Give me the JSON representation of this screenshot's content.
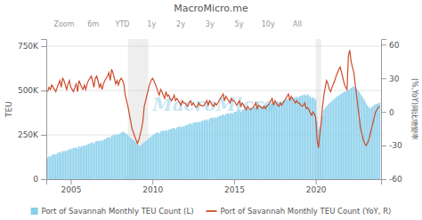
{
  "chart_data": {
    "type": "bar",
    "title": "MacroMicro.me",
    "annotations": [
      "Zoom",
      "6m",
      "YTD",
      "1y",
      "2y",
      "3y",
      "5y",
      "10y",
      "All",
      "MacroMicro"
    ],
    "ylabel": "TEU",
    "y2label": "(%,YoY)同比增變率",
    "xlim": [
      2003.5,
      2024.0
    ],
    "xticks": [
      2005,
      2010,
      2015,
      2020
    ],
    "ylim": [
      0,
      790000
    ],
    "yticks": [
      0,
      {
        "value": 250000,
        "label": "250K"
      },
      {
        "value": 500000,
        "label": "500K"
      },
      {
        "value": 750000,
        "label": "750K"
      }
    ],
    "y2lim": [
      -60,
      65
    ],
    "y2ticks": [
      -60,
      -30,
      0,
      30,
      60
    ],
    "grid": true,
    "legend": "bottom",
    "shaded_regions": [
      [
        2008.5,
        2009.75
      ],
      [
        2020.0,
        2020.33
      ]
    ],
    "x": [
      2003.583,
      2003.667,
      2003.75,
      2003.833,
      2003.917,
      2004.0,
      2004.083,
      2004.167,
      2004.25,
      2004.333,
      2004.417,
      2004.5,
      2004.583,
      2004.667,
      2004.75,
      2004.833,
      2004.917,
      2005.0,
      2005.083,
      2005.167,
      2005.25,
      2005.333,
      2005.417,
      2005.5,
      2005.583,
      2005.667,
      2005.75,
      2005.833,
      2005.917,
      2006.0,
      2006.083,
      2006.167,
      2006.25,
      2006.333,
      2006.417,
      2006.5,
      2006.583,
      2006.667,
      2006.75,
      2006.833,
      2006.917,
      2007.0,
      2007.083,
      2007.167,
      2007.25,
      2007.333,
      2007.417,
      2007.5,
      2007.583,
      2007.667,
      2007.75,
      2007.833,
      2007.917,
      2008.0,
      2008.083,
      2008.167,
      2008.25,
      2008.333,
      2008.417,
      2008.5,
      2008.583,
      2008.667,
      2008.75,
      2008.833,
      2008.917,
      2009.0,
      2009.083,
      2009.167,
      2009.25,
      2009.333,
      2009.417,
      2009.5,
      2009.583,
      2009.667,
      2009.75,
      2009.833,
      2009.917,
      2010.0,
      2010.083,
      2010.167,
      2010.25,
      2010.333,
      2010.417,
      2010.5,
      2010.583,
      2010.667,
      2010.75,
      2010.833,
      2010.917,
      2011.0,
      2011.083,
      2011.167,
      2011.25,
      2011.333,
      2011.417,
      2011.5,
      2011.583,
      2011.667,
      2011.75,
      2011.833,
      2011.917,
      2012.0,
      2012.083,
      2012.167,
      2012.25,
      2012.333,
      2012.417,
      2012.5,
      2012.583,
      2012.667,
      2012.75,
      2012.833,
      2012.917,
      2013.0,
      2013.083,
      2013.167,
      2013.25,
      2013.333,
      2013.417,
      2013.5,
      2013.583,
      2013.667,
      2013.75,
      2013.833,
      2013.917,
      2014.0,
      2014.083,
      2014.167,
      2014.25,
      2014.333,
      2014.417,
      2014.5,
      2014.583,
      2014.667,
      2014.75,
      2014.833,
      2014.917,
      2015.0,
      2015.083,
      2015.167,
      2015.25,
      2015.333,
      2015.417,
      2015.5,
      2015.583,
      2015.667,
      2015.75,
      2015.833,
      2015.917,
      2016.0,
      2016.083,
      2016.167,
      2016.25,
      2016.333,
      2016.417,
      2016.5,
      2016.583,
      2016.667,
      2016.75,
      2016.833,
      2016.917,
      2017.0,
      2017.083,
      2017.167,
      2017.25,
      2017.333,
      2017.417,
      2017.5,
      2017.583,
      2017.667,
      2017.75,
      2017.833,
      2017.917,
      2018.0,
      2018.083,
      2018.167,
      2018.25,
      2018.333,
      2018.417,
      2018.5,
      2018.583,
      2018.667,
      2018.75,
      2018.833,
      2018.917,
      2019.0,
      2019.083,
      2019.167,
      2019.25,
      2019.333,
      2019.417,
      2019.5,
      2019.583,
      2019.667,
      2019.75,
      2019.833,
      2019.917,
      2020.0,
      2020.083,
      2020.167,
      2020.25,
      2020.333,
      2020.417,
      2020.5,
      2020.583,
      2020.667,
      2020.75,
      2020.833,
      2020.917,
      2021.0,
      2021.083,
      2021.167,
      2021.25,
      2021.333,
      2021.417,
      2021.5,
      2021.583,
      2021.667,
      2021.75,
      2021.833,
      2021.917,
      2022.0,
      2022.083,
      2022.167,
      2022.25,
      2022.333,
      2022.417,
      2022.5,
      2022.583,
      2022.667,
      2022.75,
      2022.833,
      2022.917,
      2023.0,
      2023.083,
      2023.167,
      2023.25,
      2023.333,
      2023.417,
      2023.5,
      2023.583,
      2023.667,
      2023.75,
      2023.833,
      2023.917
    ],
    "series": [
      {
        "name": "Port of Savannah Monthly TEU Count (L)",
        "type": "bar",
        "color": "#87CEEB",
        "values": [
          120000,
          130000,
          125000,
          135000,
          140000,
          142000,
          138000,
          145000,
          150000,
          155000,
          148000,
          160000,
          155000,
          162000,
          158000,
          165000,
          170000,
          168000,
          172000,
          175000,
          178000,
          180000,
          172000,
          185000,
          182000,
          188000,
          185000,
          192000,
          188000,
          195000,
          198000,
          202000,
          205000,
          208000,
          200000,
          212000,
          215000,
          218000,
          212000,
          220000,
          215000,
          222000,
          225000,
          230000,
          235000,
          238000,
          232000,
          245000,
          248000,
          252000,
          248000,
          255000,
          250000,
          258000,
          262000,
          265000,
          268000,
          260000,
          255000,
          248000,
          240000,
          232000,
          228000,
          222000,
          215000,
          205000,
          198000,
          192000,
          188000,
          195000,
          202000,
          210000,
          215000,
          220000,
          228000,
          235000,
          240000,
          248000,
          252000,
          258000,
          262000,
          265000,
          258000,
          268000,
          272000,
          275000,
          270000,
          278000,
          272000,
          280000,
          282000,
          285000,
          288000,
          290000,
          282000,
          292000,
          295000,
          298000,
          292000,
          300000,
          295000,
          302000,
          305000,
          308000,
          312000,
          315000,
          308000,
          318000,
          320000,
          322000,
          318000,
          325000,
          320000,
          328000,
          330000,
          332000,
          335000,
          338000,
          330000,
          342000,
          345000,
          348000,
          342000,
          350000,
          345000,
          352000,
          355000,
          358000,
          362000,
          365000,
          358000,
          368000,
          370000,
          372000,
          368000,
          375000,
          370000,
          378000,
          380000,
          382000,
          385000,
          388000,
          380000,
          390000,
          392000,
          395000,
          388000,
          396000,
          390000,
          398000,
          400000,
          402000,
          405000,
          408000,
          400000,
          410000,
          412000,
          415000,
          408000,
          418000,
          412000,
          420000,
          422000,
          425000,
          428000,
          430000,
          422000,
          432000,
          435000,
          438000,
          432000,
          440000,
          435000,
          442000,
          445000,
          448000,
          452000,
          455000,
          448000,
          458000,
          460000,
          462000,
          458000,
          465000,
          460000,
          468000,
          470000,
          472000,
          475000,
          478000,
          470000,
          480000,
          472000,
          465000,
          458000,
          462000,
          455000,
          448000,
          328000,
          282000,
          295000,
          322000,
          358000,
          388000,
          402000,
          412000,
          420000,
          428000,
          435000,
          442000,
          448000,
          455000,
          462000,
          468000,
          472000,
          478000,
          482000,
          488000,
          492000,
          495000,
          498000,
          502000,
          508000,
          515000,
          520000,
          525000,
          518000,
          510000,
          502000,
          492000,
          480000,
          468000,
          455000,
          442000,
          428000,
          415000,
          405000,
          398000,
          405000,
          412000,
          418000,
          422000,
          425000,
          428000,
          432000
        ]
      },
      {
        "name": "Port of Savannah Monthly TEU Count (YoY, R)",
        "type": "line",
        "axis": "y2",
        "color": "#cd4b2a",
        "values": [
          18,
          22,
          20,
          24,
          22,
          20,
          18,
          22,
          25,
          28,
          22,
          30,
          28,
          24,
          20,
          25,
          28,
          22,
          20,
          18,
          22,
          25,
          18,
          28,
          25,
          22,
          20,
          24,
          20,
          25,
          28,
          30,
          32,
          28,
          22,
          30,
          32,
          28,
          22,
          25,
          20,
          25,
          28,
          30,
          32,
          35,
          28,
          38,
          35,
          30,
          25,
          28,
          24,
          28,
          30,
          28,
          25,
          15,
          10,
          5,
          -2,
          -8,
          -15,
          -18,
          -22,
          -25,
          -28,
          -25,
          -20,
          -15,
          -8,
          5,
          10,
          15,
          20,
          25,
          28,
          30,
          28,
          25,
          22,
          18,
          15,
          20,
          18,
          15,
          12,
          18,
          14,
          15,
          12,
          10,
          12,
          15,
          10,
          12,
          10,
          8,
          6,
          10,
          8,
          8,
          6,
          5,
          8,
          10,
          6,
          8,
          6,
          4,
          5,
          8,
          6,
          6,
          5,
          6,
          8,
          10,
          6,
          10,
          8,
          6,
          5,
          8,
          6,
          8,
          10,
          12,
          14,
          16,
          10,
          14,
          12,
          10,
          8,
          12,
          10,
          10,
          8,
          6,
          8,
          10,
          5,
          8,
          6,
          4,
          2,
          5,
          3,
          2,
          3,
          4,
          6,
          8,
          3,
          6,
          5,
          4,
          3,
          5,
          3,
          5,
          6,
          8,
          10,
          12,
          6,
          10,
          8,
          6,
          5,
          8,
          6,
          8,
          10,
          12,
          14,
          16,
          10,
          14,
          12,
          10,
          8,
          10,
          8,
          8,
          6,
          5,
          6,
          8,
          3,
          4,
          2,
          -1,
          -3,
          0,
          -2,
          -5,
          -25,
          -32,
          -20,
          -10,
          5,
          15,
          22,
          28,
          25,
          20,
          18,
          22,
          25,
          28,
          32,
          35,
          38,
          40,
          35,
          30,
          25,
          22,
          20,
          50,
          55,
          45,
          40,
          35,
          25,
          15,
          5,
          -5,
          -15,
          -20,
          -25,
          -28,
          -30,
          -28,
          -25,
          -20,
          -15,
          -10,
          -5,
          0,
          2,
          4,
          5
        ]
      }
    ]
  }
}
